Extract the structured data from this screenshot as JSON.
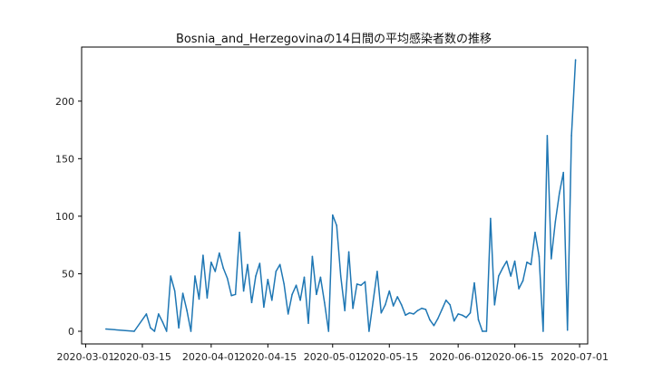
{
  "chart_data": {
    "type": "line",
    "title": "Bosnia_and_Herzegovinaの14日間の平均感染者数の推移",
    "xlabel": "",
    "ylabel": "",
    "x_axis": "date",
    "xlim": [
      "2020-02-29",
      "2020-07-03"
    ],
    "ylim": [
      -11,
      247
    ],
    "x_ticks": [
      "2020-03-01",
      "2020-03-15",
      "2020-04-01",
      "2020-04-15",
      "2020-05-01",
      "2020-05-15",
      "2020-06-01",
      "2020-06-15",
      "2020-07-01"
    ],
    "y_ticks": [
      0,
      50,
      100,
      150,
      200
    ],
    "grid": false,
    "line_color": "#1f77b4",
    "series": [
      {
        "x": [
          "2020-03-06",
          "2020-03-13",
          "2020-03-16",
          "2020-03-17",
          "2020-03-18",
          "2020-03-19",
          "2020-03-20",
          "2020-03-21",
          "2020-03-22",
          "2020-03-23",
          "2020-03-24",
          "2020-03-25",
          "2020-03-26",
          "2020-03-27",
          "2020-03-28",
          "2020-03-29",
          "2020-03-30",
          "2020-03-31",
          "2020-04-01",
          "2020-04-02",
          "2020-04-03",
          "2020-04-04",
          "2020-04-05",
          "2020-04-06",
          "2020-04-07",
          "2020-04-08",
          "2020-04-09",
          "2020-04-10",
          "2020-04-11",
          "2020-04-12",
          "2020-04-13",
          "2020-04-14",
          "2020-04-15",
          "2020-04-16",
          "2020-04-17",
          "2020-04-18",
          "2020-04-19",
          "2020-04-20",
          "2020-04-21",
          "2020-04-22",
          "2020-04-23",
          "2020-04-24",
          "2020-04-25",
          "2020-04-26",
          "2020-04-27",
          "2020-04-28",
          "2020-04-29",
          "2020-04-30",
          "2020-05-01",
          "2020-05-02",
          "2020-05-03",
          "2020-05-04",
          "2020-05-05",
          "2020-05-06",
          "2020-05-07",
          "2020-05-08",
          "2020-05-09",
          "2020-05-10",
          "2020-05-11",
          "2020-05-12",
          "2020-05-13",
          "2020-05-14",
          "2020-05-15",
          "2020-05-16",
          "2020-05-17",
          "2020-05-18",
          "2020-05-19",
          "2020-05-20",
          "2020-05-21",
          "2020-05-22",
          "2020-05-23",
          "2020-05-24",
          "2020-05-25",
          "2020-05-26",
          "2020-05-27",
          "2020-05-28",
          "2020-05-29",
          "2020-05-30",
          "2020-05-31",
          "2020-06-01",
          "2020-06-02",
          "2020-06-03",
          "2020-06-04",
          "2020-06-05",
          "2020-06-06",
          "2020-06-07",
          "2020-06-08",
          "2020-06-09",
          "2020-06-10",
          "2020-06-11",
          "2020-06-12",
          "2020-06-13",
          "2020-06-14",
          "2020-06-15",
          "2020-06-16",
          "2020-06-17",
          "2020-06-18",
          "2020-06-19",
          "2020-06-20",
          "2020-06-21",
          "2020-06-22",
          "2020-06-23",
          "2020-06-24",
          "2020-06-25",
          "2020-06-26",
          "2020-06-27",
          "2020-06-28",
          "2020-06-29",
          "2020-06-30"
        ],
        "values": [
          2,
          0,
          15,
          3,
          0,
          15,
          8,
          0,
          48,
          35,
          3,
          33,
          18,
          0,
          48,
          28,
          66,
          29,
          60,
          52,
          68,
          55,
          46,
          31,
          32,
          86,
          35,
          58,
          25,
          48,
          59,
          21,
          45,
          27,
          52,
          58,
          41,
          15,
          32,
          40,
          27,
          47,
          7,
          65,
          32,
          47,
          25,
          0,
          101,
          92,
          48,
          18,
          69,
          20,
          41,
          40,
          43,
          0,
          26,
          52,
          16,
          23,
          35,
          22,
          30,
          23,
          14,
          16,
          15,
          18,
          20,
          19,
          10,
          5,
          11,
          19,
          27,
          23,
          9,
          15,
          14,
          12,
          16,
          42,
          10,
          0,
          0,
          98,
          23,
          48,
          55,
          61,
          48,
          61,
          37,
          44,
          60,
          58,
          86,
          65,
          0,
          170,
          63,
          95,
          120,
          138,
          1,
          170,
          236
        ]
      }
    ]
  }
}
